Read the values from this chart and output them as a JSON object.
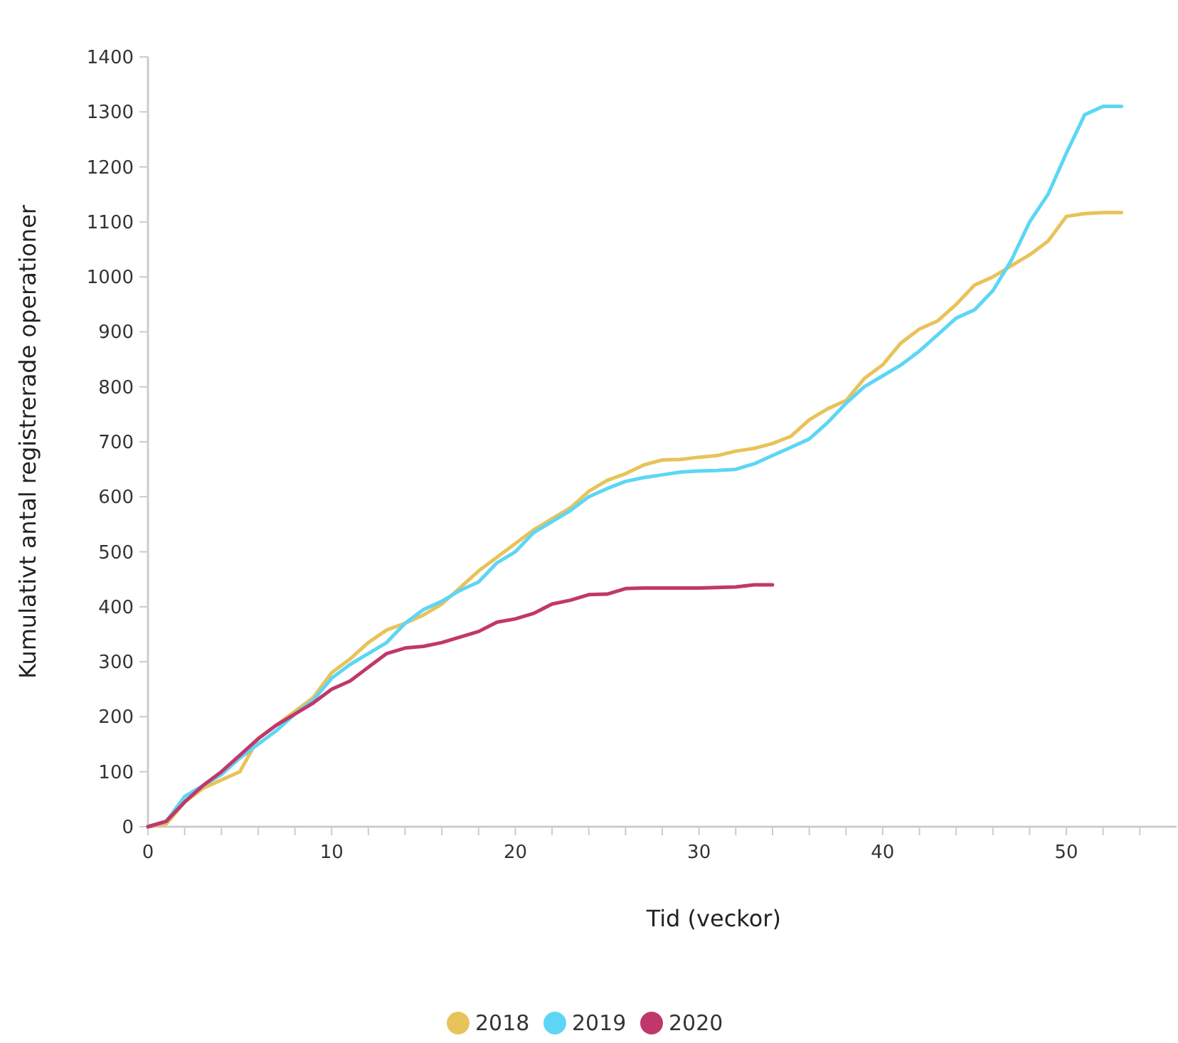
{
  "chart_data": {
    "type": "line",
    "xlabel": "Tid (veckor)",
    "ylabel": "Kumulativt antal registrerade operationer",
    "xlim": [
      0,
      56
    ],
    "xticks": [
      0,
      {
        "value": 2,
        "label": null
      },
      {
        "value": 4,
        "label": null
      },
      {
        "value": 6,
        "label": null
      },
      {
        "value": 8,
        "label": null
      },
      10,
      {
        "value": 12,
        "label": null
      },
      {
        "value": 14,
        "label": null
      },
      {
        "value": 16,
        "label": null
      },
      {
        "value": 18,
        "label": null
      },
      20,
      {
        "value": 22,
        "label": null
      },
      {
        "value": 24,
        "label": null
      },
      {
        "value": 26,
        "label": null
      },
      {
        "value": 28,
        "label": null
      },
      30,
      {
        "value": 32,
        "label": null
      },
      {
        "value": 34,
        "label": null
      },
      {
        "value": 36,
        "label": null
      },
      {
        "value": 38,
        "label": null
      },
      40,
      {
        "value": 42,
        "label": null
      },
      {
        "value": 44,
        "label": null
      },
      {
        "value": 46,
        "label": null
      },
      {
        "value": 48,
        "label": null
      },
      50,
      {
        "value": 52,
        "label": null
      },
      {
        "value": 54,
        "label": null
      }
    ],
    "ylim": [
      0,
      1400
    ],
    "yticks": [
      0,
      100,
      200,
      300,
      400,
      500,
      600,
      700,
      800,
      900,
      1000,
      1100,
      1200,
      1300,
      1400
    ],
    "grid": false,
    "legend": "bottom",
    "marker": "none",
    "line_style": "solid",
    "series": [
      {
        "name": "2018",
        "color": "#e8c35a",
        "x": [
          0,
          1,
          2,
          3,
          4,
          5,
          6,
          7,
          8,
          9,
          10,
          11,
          12,
          13,
          14,
          15,
          16,
          17,
          18,
          19,
          20,
          21,
          22,
          23,
          24,
          25,
          26,
          27,
          28,
          29,
          30,
          31,
          32,
          33,
          34,
          35,
          36,
          37,
          38,
          39,
          40,
          41,
          42,
          43,
          44,
          45,
          46,
          47,
          48,
          49,
          50,
          51,
          52,
          53
        ],
        "values": [
          0,
          5,
          45,
          70,
          85,
          100,
          160,
          185,
          210,
          235,
          280,
          305,
          335,
          358,
          370,
          385,
          405,
          435,
          465,
          490,
          515,
          540,
          560,
          580,
          610,
          630,
          642,
          658,
          667,
          668,
          672,
          675,
          683,
          688,
          697,
          710,
          740,
          760,
          775,
          815,
          840,
          880,
          905,
          920,
          950,
          985,
          1000,
          1020,
          1040,
          1065,
          1110,
          1115,
          1117,
          1117
        ]
      },
      {
        "name": "2019",
        "color": "#5dd6f5",
        "x": [
          0,
          1,
          2,
          3,
          4,
          5,
          6,
          7,
          8,
          9,
          10,
          11,
          12,
          13,
          14,
          15,
          16,
          17,
          18,
          19,
          20,
          21,
          22,
          23,
          24,
          25,
          26,
          27,
          28,
          29,
          30,
          31,
          32,
          33,
          34,
          35,
          36,
          37,
          38,
          39,
          40,
          41,
          42,
          43,
          44,
          45,
          46,
          47,
          48,
          49,
          50,
          51,
          52,
          53
        ],
        "values": [
          0,
          10,
          55,
          75,
          95,
          125,
          150,
          175,
          205,
          230,
          270,
          295,
          315,
          335,
          370,
          395,
          410,
          430,
          445,
          480,
          500,
          535,
          555,
          575,
          600,
          615,
          628,
          635,
          640,
          645,
          647,
          648,
          650,
          660,
          675,
          690,
          705,
          735,
          770,
          800,
          820,
          840,
          865,
          895,
          925,
          940,
          975,
          1030,
          1100,
          1150,
          1225,
          1295,
          1310,
          1310
        ]
      },
      {
        "name": "2020",
        "color": "#c0386b",
        "x": [
          0,
          1,
          2,
          3,
          4,
          5,
          6,
          7,
          8,
          9,
          10,
          11,
          12,
          13,
          14,
          15,
          16,
          17,
          18,
          19,
          20,
          21,
          22,
          23,
          24,
          25,
          26,
          27,
          28,
          29,
          30,
          31,
          32,
          33,
          34
        ],
        "values": [
          0,
          10,
          45,
          75,
          100,
          130,
          160,
          185,
          205,
          225,
          250,
          265,
          290,
          315,
          325,
          328,
          335,
          345,
          355,
          372,
          378,
          388,
          405,
          412,
          422,
          423,
          433,
          434,
          434,
          434,
          434,
          435,
          436,
          440,
          440
        ]
      }
    ]
  }
}
